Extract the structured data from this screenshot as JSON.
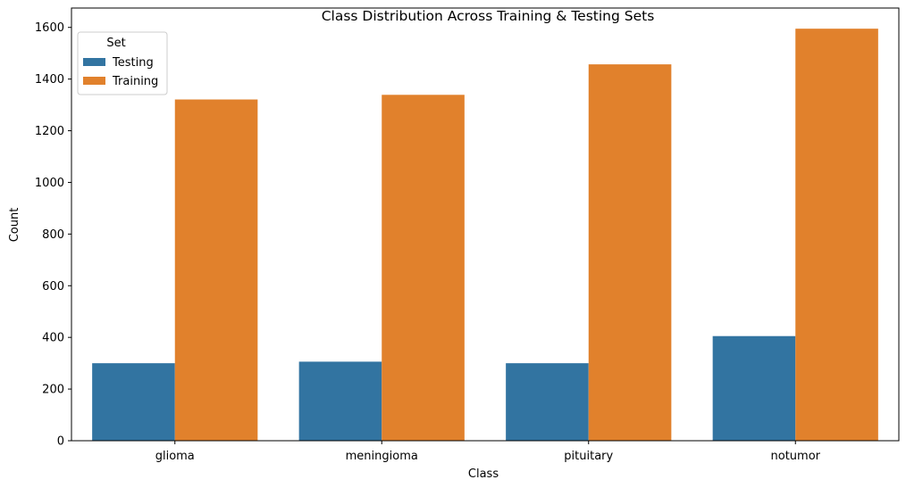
{
  "chart_data": {
    "type": "bar",
    "title": "Class Distribution Across Training & Testing Sets",
    "xlabel": "Class",
    "ylabel": "Count",
    "categories": [
      "glioma",
      "meningioma",
      "pituitary",
      "notumor"
    ],
    "series": [
      {
        "name": "Testing",
        "values": [
          300,
          306,
          300,
          405
        ],
        "color": "#3274a1"
      },
      {
        "name": "Training",
        "values": [
          1321,
          1339,
          1457,
          1595
        ],
        "color": "#e1812c"
      }
    ],
    "ylim": [
      0,
      1675
    ],
    "yticks": [
      0,
      200,
      400,
      600,
      800,
      1000,
      1200,
      1400,
      1600
    ],
    "legend": {
      "title": "Set",
      "placement": "top-left"
    },
    "grid": false
  }
}
